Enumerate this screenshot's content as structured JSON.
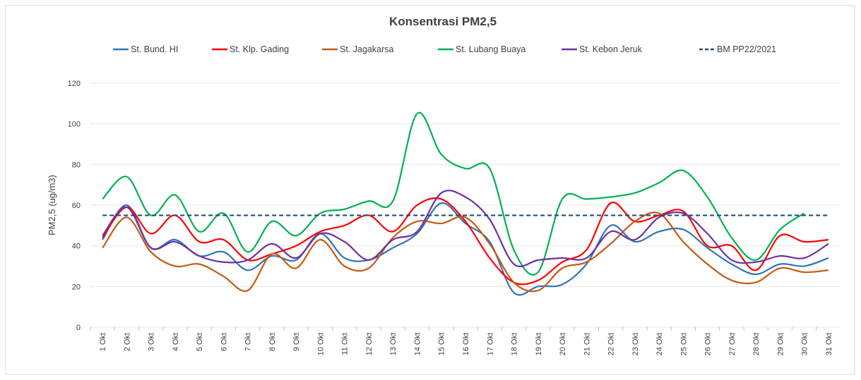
{
  "chart_data": {
    "type": "line",
    "title": "Konsentrasi PM2,5",
    "y_label": "PM2,5 (ug/m3)",
    "categories": [
      "1 Okt",
      "2 Okt",
      "3 Okt",
      "4 Okt",
      "5 Okt",
      "6 Okt",
      "7 Okt",
      "8 Okt",
      "9 Okt",
      "10 Okt",
      "11 Okt",
      "12 Okt",
      "13 Okt",
      "14 Okt",
      "15 Okt",
      "16 Okt",
      "17 Okt",
      "18 Okt",
      "19 Okt",
      "20 Okt",
      "21 Okt",
      "22 Okt",
      "23 Okt",
      "24 Okt",
      "25 Okt",
      "26 Okt",
      "27 Okt",
      "28 Okt",
      "29 Okt",
      "30 Okt",
      "31 Okt"
    ],
    "series": [
      {
        "name": "St. Bund. HI",
        "color": "#2e75b6",
        "dashed": false,
        "values": [
          43,
          60,
          39,
          43,
          35,
          37,
          28,
          35,
          33,
          46,
          34,
          33,
          39,
          46,
          61,
          51,
          42,
          17,
          20,
          21,
          31,
          50,
          42,
          47,
          48,
          39,
          31,
          26,
          31,
          30,
          34
        ]
      },
      {
        "name": "St. Klp. Gading",
        "color": "#ff0000",
        "dashed": false,
        "values": [
          44,
          59,
          46,
          55,
          42,
          43,
          33,
          36,
          40,
          47,
          50,
          55,
          47,
          60,
          63,
          52,
          34,
          22,
          23,
          32,
          38,
          61,
          52,
          55,
          57,
          40,
          40,
          28,
          45,
          42,
          43
        ]
      },
      {
        "name": "St. Jagakarsa",
        "color": "#c55a11",
        "dashed": false,
        "values": [
          39,
          54,
          37,
          30,
          31,
          25,
          18,
          36,
          29,
          43,
          30,
          29,
          44,
          52,
          51,
          54,
          41,
          22,
          18,
          29,
          32,
          41,
          52,
          56,
          42,
          31,
          23,
          22,
          29,
          27,
          28
        ]
      },
      {
        "name": "St. Lubang Buaya",
        "color": "#00b050",
        "dashed": false,
        "values": [
          63,
          74,
          55,
          65,
          47,
          56,
          37,
          52,
          45,
          56,
          58,
          62,
          62,
          105,
          85,
          78,
          78,
          38,
          27,
          63,
          63,
          64,
          66,
          71,
          77,
          64,
          44,
          33,
          48,
          56,
          null
        ]
      },
      {
        "name": "St. Kebon Jeruk",
        "color": "#7030a0",
        "dashed": false,
        "values": [
          45,
          59,
          39,
          42,
          35,
          32,
          33,
          41,
          34,
          46,
          42,
          33,
          43,
          47,
          66,
          64,
          53,
          31,
          33,
          34,
          34,
          47,
          43,
          54,
          56,
          46,
          33,
          32,
          35,
          34,
          41
        ]
      },
      {
        "name": "BM PP22/2021",
        "color": "#1f4e79",
        "dashed": true,
        "values": [
          55,
          55,
          55,
          55,
          55,
          55,
          55,
          55,
          55,
          55,
          55,
          55,
          55,
          55,
          55,
          55,
          55,
          55,
          55,
          55,
          55,
          55,
          55,
          55,
          55,
          55,
          55,
          55,
          55,
          55,
          55
        ]
      }
    ],
    "ylim": [
      0,
      120
    ],
    "yticks": [
      0,
      20,
      40,
      60,
      80,
      100,
      120
    ],
    "grid": true,
    "legend": "top"
  }
}
